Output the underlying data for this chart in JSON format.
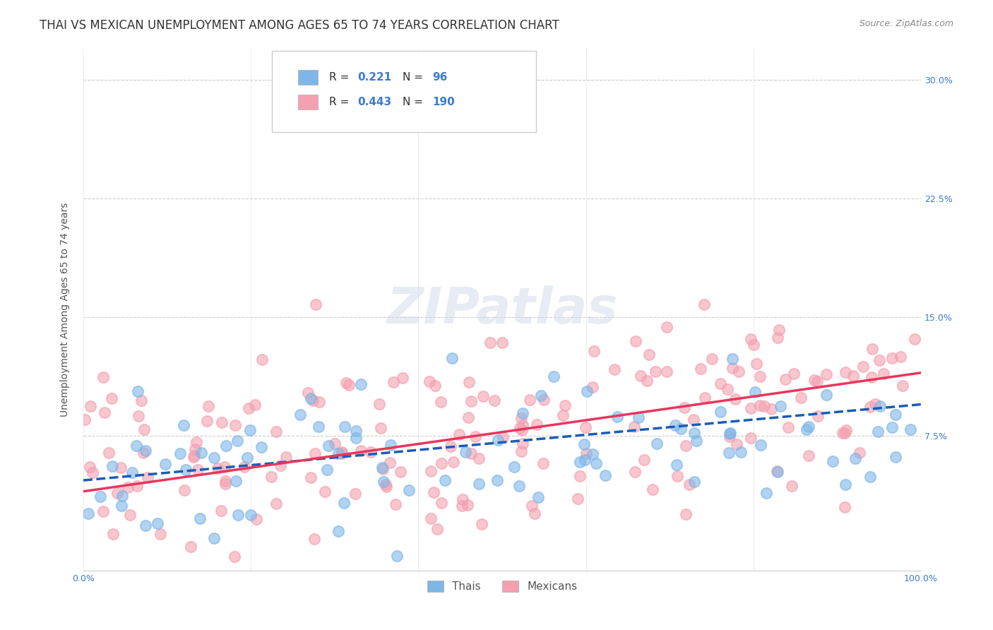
{
  "title": "THAI VS MEXICAN UNEMPLOYMENT AMONG AGES 65 TO 74 YEARS CORRELATION CHART",
  "source": "Source: ZipAtlas.com",
  "ylabel": "Unemployment Among Ages 65 to 74 years",
  "xlim": [
    0,
    1.0
  ],
  "ylim": [
    -0.01,
    0.32
  ],
  "xticks": [
    0.0,
    0.2,
    0.4,
    0.6,
    0.8,
    1.0
  ],
  "xticklabels": [
    "0.0%",
    "",
    "",
    "",
    "",
    "100.0%"
  ],
  "yticks": [
    0.0,
    0.075,
    0.15,
    0.225,
    0.3
  ],
  "yticklabels": [
    "",
    "7.5%",
    "15.0%",
    "22.5%",
    "30.0%"
  ],
  "thai_color": "#7EB6E8",
  "mexican_color": "#F4A0B0",
  "thai_trend_color": "#1a5cb5",
  "mexican_trend_color": "#e8365d",
  "background_color": "#ffffff",
  "grid_color": "#cccccc",
  "watermark": "ZIPatlas",
  "watermark_color": "#d0d8e8",
  "title_fontsize": 12,
  "axis_label_fontsize": 10,
  "tick_fontsize": 9,
  "legend_fontsize": 11,
  "thai_seed": 42,
  "mexican_seed": 7,
  "thai_n": 96,
  "mexican_n": 190,
  "thai_r": 0.221,
  "mexican_r": 0.443,
  "thai_intercept": 0.047,
  "thai_slope": 0.048,
  "mexican_intercept": 0.04,
  "mexican_slope": 0.075
}
